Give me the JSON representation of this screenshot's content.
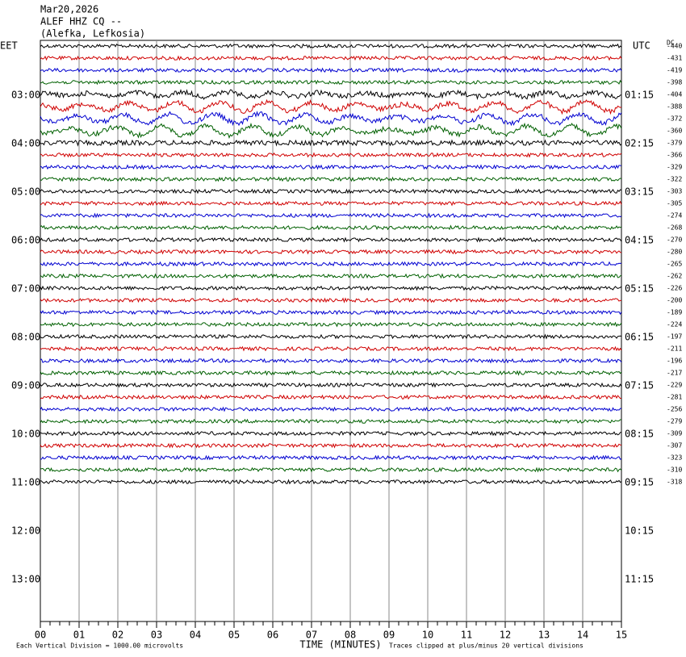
{
  "header": {
    "date": "Mar20,2026",
    "station": "ALEF HHZ CQ --",
    "location": "(Alefka, Lefkosia)"
  },
  "left_axis_label": "EET",
  "right_axis_label": "UTC",
  "dc_label": "DC",
  "left_times": [
    "03:00",
    "04:00",
    "05:00",
    "06:00",
    "07:00",
    "08:00",
    "09:00",
    "10:00",
    "11:00",
    "12:00",
    "13:00"
  ],
  "right_times": [
    "01:15",
    "02:15",
    "03:15",
    "04:15",
    "05:15",
    "06:15",
    "07:15",
    "08:15",
    "09:15",
    "10:15",
    "11:15"
  ],
  "dc_offsets": [
    -440,
    -431,
    -419,
    -398,
    -404,
    -388,
    -372,
    -360,
    -379,
    -366,
    -329,
    -322,
    -303,
    -305,
    -274,
    -268,
    -270,
    -280,
    -265,
    -262,
    -226,
    -200,
    -189,
    -224,
    -197,
    -211,
    -196,
    -217,
    -229,
    -281,
    -256,
    -279,
    -309,
    -307,
    -323,
    -310,
    -318
  ],
  "x_axis": {
    "title": "TIME (MINUTES)",
    "ticks": [
      "00",
      "01",
      "02",
      "03",
      "04",
      "05",
      "06",
      "07",
      "08",
      "09",
      "10",
      "11",
      "12",
      "13",
      "14",
      "15"
    ]
  },
  "footer": {
    "left": "Each Vertical Division = 1000.00 microvolts",
    "right": "Traces clipped at plus/minus 20 vertical divisions"
  },
  "trace_colors": [
    "#000000",
    "#d00000",
    "#0000d0",
    "#006000"
  ]
}
